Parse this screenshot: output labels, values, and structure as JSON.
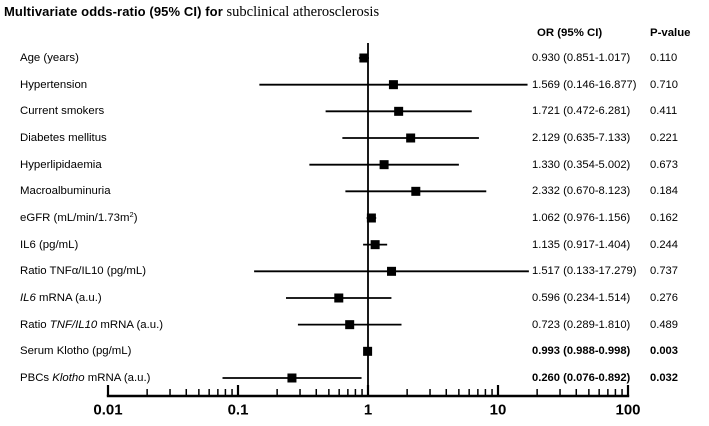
{
  "title": {
    "bold_part": "Multivariate odds-ratio (95% CI) for",
    "serif_part": " subclinical atherosclerosis"
  },
  "columns": {
    "or_header": "OR (95% CI)",
    "p_header": "P-value"
  },
  "colors": {
    "foreground": "#000000",
    "background": "#ffffff"
  },
  "chart_data": {
    "type": "forest",
    "x_scale": "log10",
    "xlim": [
      0.01,
      100
    ],
    "x_ticks": [
      0.01,
      0.1,
      1,
      10,
      100
    ],
    "x_tick_labels": [
      "0.01",
      "0.1",
      "1",
      "10",
      "100"
    ],
    "reference_line": 1,
    "grid": false,
    "title": "Multivariate odds-ratio (95% CI) for subclinical atherosclerosis",
    "rows": [
      {
        "label_parts": [
          {
            "t": "Age (years)"
          }
        ],
        "or_text": "0.930 (0.851-1.017)",
        "p_text": "0.110",
        "estimate": 0.93,
        "ci_low": 0.851,
        "ci_high": 1.017,
        "bold": false
      },
      {
        "label_parts": [
          {
            "t": "Hypertension"
          }
        ],
        "or_text": "1.569 (0.146-16.877)",
        "p_text": "0.710",
        "estimate": 1.569,
        "ci_low": 0.146,
        "ci_high": 16.877,
        "bold": false
      },
      {
        "label_parts": [
          {
            "t": "Current smokers"
          }
        ],
        "or_text": "1.721 (0.472-6.281)",
        "p_text": "0.411",
        "estimate": 1.721,
        "ci_low": 0.472,
        "ci_high": 6.281,
        "bold": false
      },
      {
        "label_parts": [
          {
            "t": "Diabetes mellitus"
          }
        ],
        "or_text": "2.129 (0.635-7.133)",
        "p_text": "0.221",
        "estimate": 2.129,
        "ci_low": 0.635,
        "ci_high": 7.133,
        "bold": false
      },
      {
        "label_parts": [
          {
            "t": "Hyperlipidaemia"
          }
        ],
        "or_text": "1.330 (0.354-5.002)",
        "p_text": "0.673",
        "estimate": 1.33,
        "ci_low": 0.354,
        "ci_high": 5.002,
        "bold": false
      },
      {
        "label_parts": [
          {
            "t": "Macroalbuminuria"
          }
        ],
        "or_text": "2.332 (0.670-8.123)",
        "p_text": "0.184",
        "estimate": 2.332,
        "ci_low": 0.67,
        "ci_high": 8.123,
        "bold": false
      },
      {
        "label_parts": [
          {
            "t": "eGFR (mL/min/1.73m"
          },
          {
            "t": "2",
            "style": "sup"
          },
          {
            "t": ")"
          }
        ],
        "or_text": "1.062 (0.976-1.156)",
        "p_text": "0.162",
        "estimate": 1.062,
        "ci_low": 0.976,
        "ci_high": 1.156,
        "bold": false
      },
      {
        "label_parts": [
          {
            "t": "IL6 (pg/mL)"
          }
        ],
        "or_text": "1.135 (0.917-1.404)",
        "p_text": "0.244",
        "estimate": 1.135,
        "ci_low": 0.917,
        "ci_high": 1.404,
        "bold": false
      },
      {
        "label_parts": [
          {
            "t": "Ratio TNFα/IL10 (pg/mL)"
          }
        ],
        "or_text": "1.517 (0.133-17.279)",
        "p_text": "0.737",
        "estimate": 1.517,
        "ci_low": 0.133,
        "ci_high": 17.279,
        "bold": false
      },
      {
        "label_parts": [
          {
            "t": "IL6",
            "style": "italic"
          },
          {
            "t": " mRNA (a.u.)"
          }
        ],
        "or_text": "0.596 (0.234-1.514)",
        "p_text": "0.276",
        "estimate": 0.596,
        "ci_low": 0.234,
        "ci_high": 1.514,
        "bold": false
      },
      {
        "label_parts": [
          {
            "t": "Ratio "
          },
          {
            "t": "TNF/IL10",
            "style": "italic"
          },
          {
            "t": " mRNA (a.u.)"
          }
        ],
        "or_text": "0.723 (0.289-1.810)",
        "p_text": "0.489",
        "estimate": 0.723,
        "ci_low": 0.289,
        "ci_high": 1.81,
        "bold": false
      },
      {
        "label_parts": [
          {
            "t": "Serum Klotho (pg/mL)"
          }
        ],
        "or_text": "0.993 (0.988-0.998)",
        "p_text": "0.003",
        "estimate": 0.993,
        "ci_low": 0.988,
        "ci_high": 0.998,
        "bold": true
      },
      {
        "label_parts": [
          {
            "t": "PBCs "
          },
          {
            "t": "Klotho",
            "style": "italic"
          },
          {
            "t": " mRNA (a.u.)"
          }
        ],
        "or_text": "0.260 (0.076-0.892)",
        "p_text": "0.032",
        "estimate": 0.26,
        "ci_low": 0.076,
        "ci_high": 0.892,
        "bold": true
      }
    ]
  }
}
